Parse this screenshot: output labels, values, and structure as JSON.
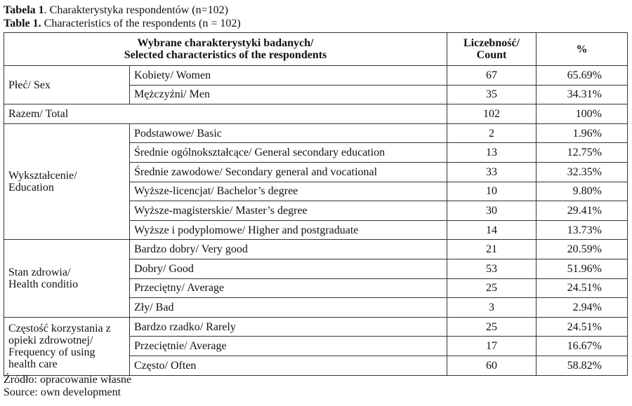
{
  "caption_pl": {
    "label": "Tabela 1",
    "text": ". Charakterystyka respondentów (n=102)"
  },
  "caption_en": {
    "label": "Table 1.",
    "text": " Characteristics of the respondents (n = 102)"
  },
  "headers": {
    "characteristics": "Wybrane charakterystyki badanych/\nSelected characteristics of the respondents",
    "count": "Liczebność/\nCount",
    "percent": "%"
  },
  "groups": [
    {
      "label": "Płeć/ Sex",
      "rows": [
        {
          "label": "Kobiety/ Women",
          "count": "67",
          "percent": "65.69%"
        },
        {
          "label": "Mężczyźni/ Men",
          "count": "35",
          "percent": "34.31%"
        }
      ]
    },
    {
      "label": "Razem/ Total",
      "total": true,
      "rows": [
        {
          "label": "",
          "count": "102",
          "percent": "100%"
        }
      ]
    },
    {
      "label": "Wykształcenie/\nEducation",
      "rows": [
        {
          "label": "Podstawowe/ Basic",
          "count": "2",
          "percent": "1.96%"
        },
        {
          "label": "Średnie ogólnokształcące/ General secondary education",
          "count": "13",
          "percent": "12.75%"
        },
        {
          "label": "Średnie zawodowe/ Secondary general and vocational",
          "count": "33",
          "percent": "32.35%"
        },
        {
          "label": "Wyższe-licencjat/ Bachelor’s degree",
          "count": "10",
          "percent": "9.80%"
        },
        {
          "label": "Wyższe-magisterskie/ Master’s degree",
          "count": "30",
          "percent": "29.41%"
        },
        {
          "label": "Wyższe i podyplomowe/ Higher and postgraduate",
          "count": "14",
          "percent": "13.73%"
        }
      ]
    },
    {
      "label": "Stan zdrowia/\nHealth conditio",
      "rows": [
        {
          "label": "Bardzo dobry/ Very good",
          "count": "21",
          "percent": "20.59%"
        },
        {
          "label": "Dobry/ Good",
          "count": "53",
          "percent": "51.96%"
        },
        {
          "label": "Przeciętny/ Average",
          "count": "25",
          "percent": "24.51%"
        },
        {
          "label": "Zły/ Bad",
          "count": "3",
          "percent": "2.94%"
        }
      ]
    },
    {
      "label": "Częstość korzystania z opieki zdrowotnej/ Frequency of using health care",
      "rows": [
        {
          "label": "Bardzo rzadko/ Rarely",
          "count": "25",
          "percent": "24.51%"
        },
        {
          "label": "Przeciętnie/ Average",
          "count": "17",
          "percent": "16.67%"
        },
        {
          "label": "Często/ Often",
          "count": "60",
          "percent": "58.82%"
        }
      ]
    }
  ],
  "source_pl": "Źródło: opracowanie własne",
  "source_en": "Source: own development"
}
